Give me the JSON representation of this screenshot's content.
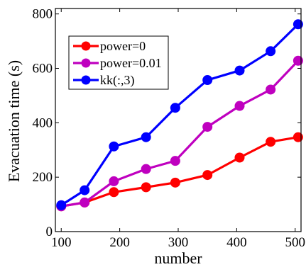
{
  "chart_data": {
    "type": "line",
    "title": "",
    "xlabel": "number",
    "ylabel": "Evacuation time (s)",
    "xlim": [
      90,
      510
    ],
    "ylim": [
      0,
      820
    ],
    "xticks": [
      100,
      200,
      300,
      400,
      500
    ],
    "yticks": [
      0,
      200,
      400,
      600,
      800
    ],
    "x": [
      100,
      140,
      190,
      245,
      295,
      350,
      405,
      458,
      505
    ],
    "series": [
      {
        "name": "power=0",
        "color": "#ff0000",
        "values": [
          93,
          107,
          145,
          163,
          180,
          208,
          272,
          330,
          347
        ]
      },
      {
        "name": "power=0.01",
        "color": "#bf00bf",
        "values": [
          93,
          107,
          185,
          230,
          260,
          385,
          462,
          522,
          628
        ]
      },
      {
        "name": "kk(:,3)",
        "color": "#0000ff",
        "values": [
          97,
          152,
          313,
          347,
          455,
          557,
          592,
          663,
          762
        ]
      }
    ],
    "grid": false,
    "legend": "top-left"
  }
}
